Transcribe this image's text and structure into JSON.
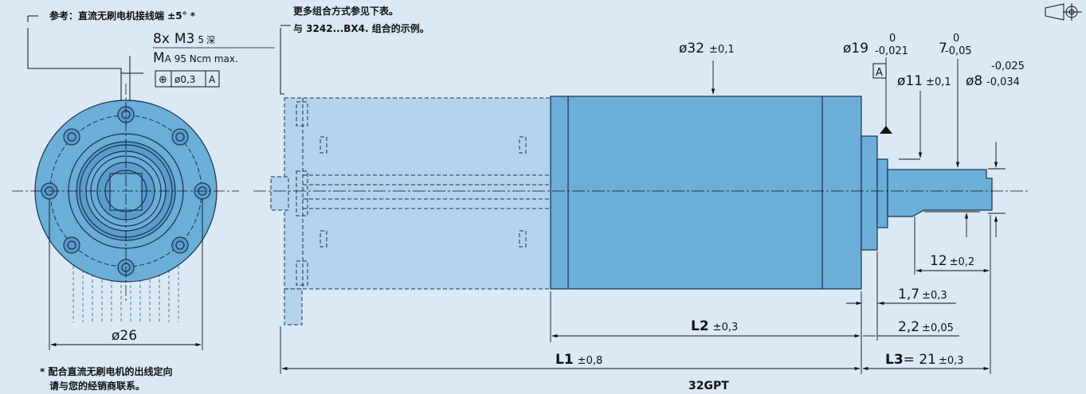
{
  "notes": {
    "reference_title": "参考：直流无刷电机接线端 ±5° *",
    "more_line1": "更多组合方式参见下表。",
    "more_line2": "与 3242...BX4. 组合的示例。",
    "footnote_line1": "* 配合直流无刷电机的出线定向",
    "footnote_line2": "请与您的经销商联系。"
  },
  "thread": {
    "count": "8x",
    "size": "M3",
    "depth": "5",
    "depth_unit": "深",
    "torque_prefix": "M",
    "torque": "A 95 Ncm max."
  },
  "tolerance_frame": {
    "symbol": "⊕",
    "value": "ø0,3",
    "datum": "A"
  },
  "dimensions": {
    "flange_dia": "ø26",
    "body_dia": "ø32",
    "body_dia_tol": "±0,1",
    "pilot_dia": "ø19",
    "pilot_tol_upper": "0",
    "pilot_tol_lower": "-0,021",
    "flat": "7",
    "flat_tol_upper": "0",
    "flat_tol_lower": "-0,05",
    "datum_label": "A",
    "shaft_step_dia": "ø11",
    "shaft_step_tol": "±0,1",
    "shaft_dia": "ø8",
    "shaft_tol_upper": "-0,025",
    "shaft_tol_lower": "-0,034",
    "len_12": "12",
    "len_12_tol": "±0,2",
    "len_1_7": "1,7",
    "len_1_7_tol": "±0,3",
    "len_2_2": "2,2",
    "len_2_2_tol": "±0,05",
    "l2": "L2",
    "l2_tol": "±0,3",
    "l1": "L1",
    "l1_tol": "±0,8",
    "l3": "L3",
    "l3_val": "= 21",
    "l3_tol": "±0,3"
  },
  "product": "32GPT",
  "colors": {
    "body": "#6baed8",
    "ghost": "#b3d3ec",
    "outline": "#1a3050",
    "background": "#dbe9f5"
  },
  "icons": {
    "projection": "projection-symbol-icon"
  }
}
